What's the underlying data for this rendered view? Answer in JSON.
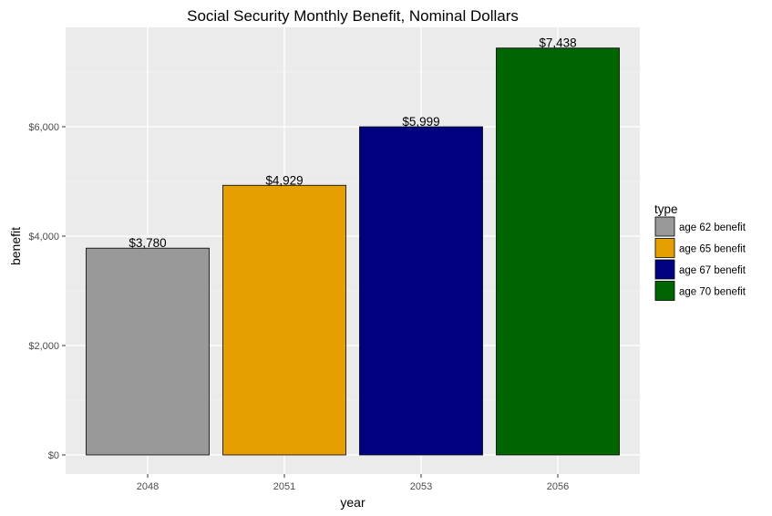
{
  "chart_data": {
    "type": "bar",
    "title": "Social Security Monthly Benefit, Nominal Dollars",
    "xlabel": "year",
    "ylabel": "benefit",
    "categories": [
      "2048",
      "2051",
      "2053",
      "2056"
    ],
    "values": [
      3780,
      4929,
      5999,
      7438
    ],
    "value_labels": [
      "$3,780",
      "$4,929",
      "$5,999",
      "$7,438"
    ],
    "bar_types": [
      "age 62 benefit",
      "age 65 benefit",
      "age 67 benefit",
      "age 70 benefit"
    ],
    "ylim": [
      0,
      7800
    ],
    "y_ticks": [
      0,
      2000,
      4000,
      6000
    ],
    "y_tick_labels": [
      "$0",
      "$2,000",
      "$4,000",
      "$6,000"
    ],
    "grid": true,
    "legend": {
      "title": "type",
      "placement": "right",
      "entries": [
        {
          "label": "age 62 benefit",
          "color": "#999999"
        },
        {
          "label": "age 65 benefit",
          "color": "#E69F00"
        },
        {
          "label": "age 67 benefit",
          "color": "#000080"
        },
        {
          "label": "age 70 benefit",
          "color": "#006400"
        }
      ]
    },
    "colors": {
      "panel_background": "#EBEBEB",
      "grid_major": "#FFFFFF",
      "grid_minor": "#F5F5F5",
      "bar_outline": "#000000"
    }
  }
}
